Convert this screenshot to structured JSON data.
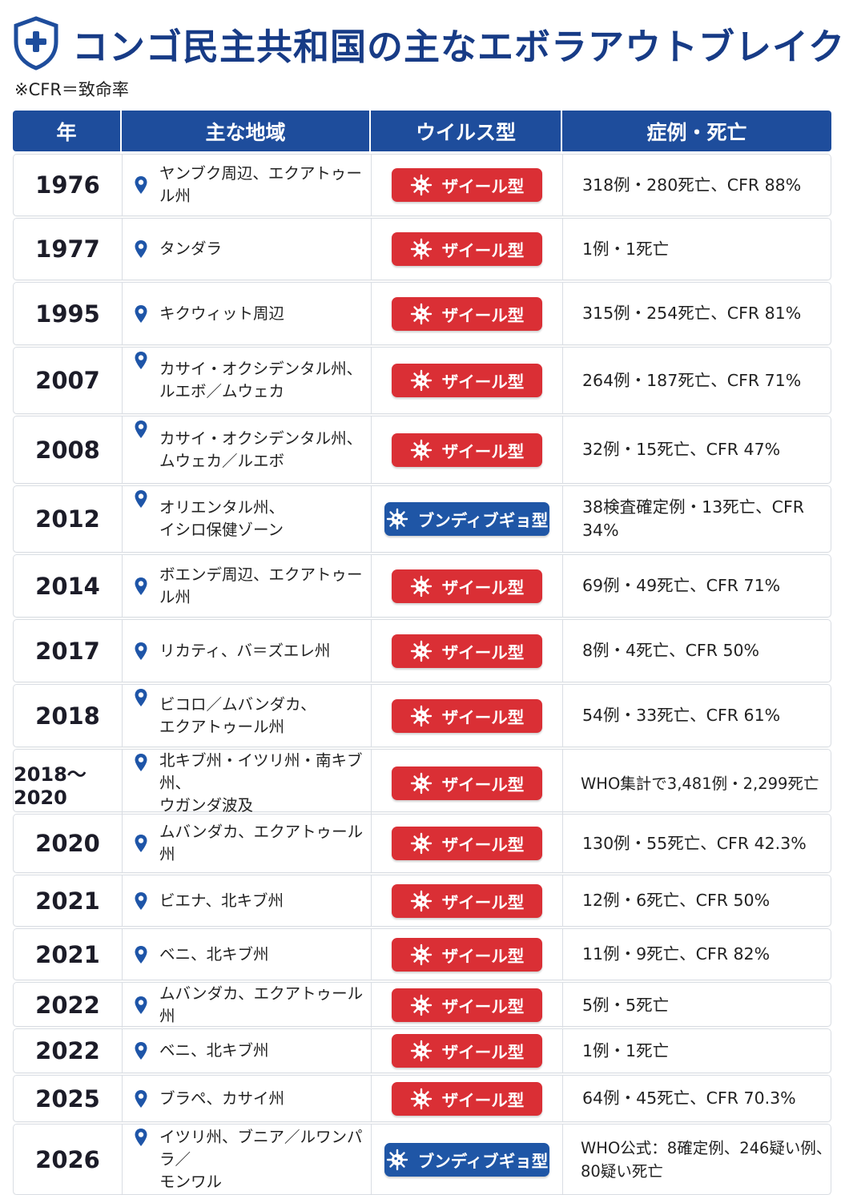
{
  "title": "コンゴ民主共和国の主なエボラアウトブレイク",
  "note": "※CFR＝致命率",
  "columns": [
    "年",
    "主な地域",
    "ウイルス型",
    "症例・死亡"
  ],
  "colors": {
    "header_bg": "#1e4d9c",
    "title": "#173b86",
    "zaire": "#da2f35",
    "bundibugyo": "#1f56a6"
  },
  "rows": [
    {
      "year": "1976",
      "region": "ヤンブク周辺、エクアトゥール州",
      "type": "ザイール型",
      "kind": "zaire",
      "cases": "318例・280死亡、CFR 88%"
    },
    {
      "year": "1977",
      "region": "タンダラ",
      "type": "ザイール型",
      "kind": "zaire",
      "cases": "1例・1死亡"
    },
    {
      "year": "1995",
      "region": "キクウィット周辺",
      "type": "ザイール型",
      "kind": "zaire",
      "cases": "315例・254死亡、CFR 81%"
    },
    {
      "year": "2007",
      "region": "カサイ・オクシデンタル州、\nルエボ／ムウェカ",
      "type": "ザイール型",
      "kind": "zaire",
      "cases": "264例・187死亡、CFR 71%"
    },
    {
      "year": "2008",
      "region": "カサイ・オクシデンタル州、\nムウェカ／ルエボ",
      "type": "ザイール型",
      "kind": "zaire",
      "cases": "32例・15死亡、CFR 47%"
    },
    {
      "year": "2012",
      "region": "オリエンタル州、\nイシロ保健ゾーン",
      "type": "ブンディブギョ型",
      "kind": "bundi",
      "cases": "38検査確定例・13死亡、CFR 34%"
    },
    {
      "year": "2014",
      "region": "ボエンデ周辺、エクアトゥール州",
      "type": "ザイール型",
      "kind": "zaire",
      "cases": "69例・49死亡、CFR 71%"
    },
    {
      "year": "2017",
      "region": "リカティ、バ＝ズエレ州",
      "type": "ザイール型",
      "kind": "zaire",
      "cases": "8例・4死亡、CFR 50%"
    },
    {
      "year": "2018",
      "region": "ビコロ／ムバンダカ、\nエクアトゥール州",
      "type": "ザイール型",
      "kind": "zaire",
      "cases": "54例・33死亡、CFR 61%"
    },
    {
      "year": "2018〜2020",
      "region": "北キブ州・イツリ州・南キブ州、\nウガンダ波及",
      "type": "ザイール型",
      "kind": "zaire",
      "cases": "WHO集計で3,481例・2,299死亡"
    },
    {
      "year": "2020",
      "region": "ムバンダカ、エクアトゥール州",
      "type": "ザイール型",
      "kind": "zaire",
      "cases": "130例・55死亡、CFR 42.3%"
    },
    {
      "year": "2021",
      "region": "ビエナ、北キブ州",
      "type": "ザイール型",
      "kind": "zaire",
      "cases": "12例・6死亡、CFR 50%"
    },
    {
      "year": "2021",
      "region": "ベニ、北キブ州",
      "type": "ザイール型",
      "kind": "zaire",
      "cases": "11例・9死亡、CFR 82%"
    },
    {
      "year": "2022",
      "region": "ムバンダカ、エクアトゥール州",
      "type": "ザイール型",
      "kind": "zaire",
      "cases": "5例・5死亡"
    },
    {
      "year": "2022",
      "region": "ベニ、北キブ州",
      "type": "ザイール型",
      "kind": "zaire",
      "cases": "1例・1死亡"
    },
    {
      "year": "2025",
      "region": "ブラペ、カサイ州",
      "type": "ザイール型",
      "kind": "zaire",
      "cases": "64例・45死亡、CFR 70.3%"
    },
    {
      "year": "2026",
      "region": "イツリ州、ブニア／ルワンパラ／\nモンワル",
      "type": "ブンディブギョ型",
      "kind": "bundi",
      "cases": "WHO公式：8確定例、246疑い例、\n80疑い死亡"
    }
  ]
}
